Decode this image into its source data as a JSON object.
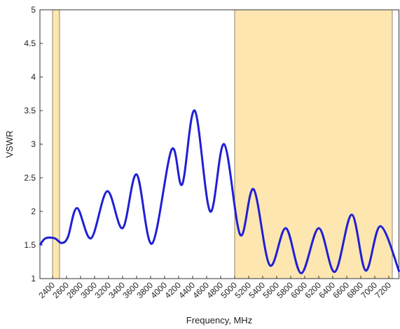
{
  "chart_data": {
    "type": "line",
    "xlabel": "Frequency, MHz",
    "ylabel": "VSWR",
    "xlim": [
      2220,
      7350
    ],
    "ylim": [
      1,
      5
    ],
    "xticks": [
      2400,
      2600,
      2800,
      3000,
      3200,
      3400,
      3600,
      3800,
      4000,
      4200,
      4400,
      4600,
      4800,
      5000,
      5200,
      5400,
      5600,
      5800,
      6000,
      6200,
      6400,
      6600,
      6800,
      7000,
      7200
    ],
    "yticks": [
      1,
      1.5,
      2,
      2.5,
      3,
      3.5,
      4,
      4.5,
      5
    ],
    "grid": false,
    "shaded_regions": [
      [
        2400,
        2500
      ],
      [
        5000,
        7250
      ]
    ],
    "shade_color": "#fde6b0",
    "series": [
      {
        "color": "#1f1fd6",
        "x": [
          2220,
          2300,
          2430,
          2530,
          2620,
          2750,
          2950,
          3180,
          3400,
          3600,
          3820,
          4100,
          4250,
          4430,
          4650,
          4850,
          5080,
          5270,
          5500,
          5730,
          5950,
          6200,
          6430,
          6670,
          6870,
          7080,
          7350
        ],
        "values": [
          1.5,
          1.6,
          1.6,
          1.53,
          1.62,
          2.05,
          1.6,
          2.3,
          1.75,
          2.55,
          1.52,
          2.92,
          2.4,
          3.5,
          2.0,
          3.0,
          1.65,
          2.33,
          1.2,
          1.75,
          1.08,
          1.75,
          1.1,
          1.95,
          1.12,
          1.78,
          1.1
        ]
      }
    ]
  }
}
